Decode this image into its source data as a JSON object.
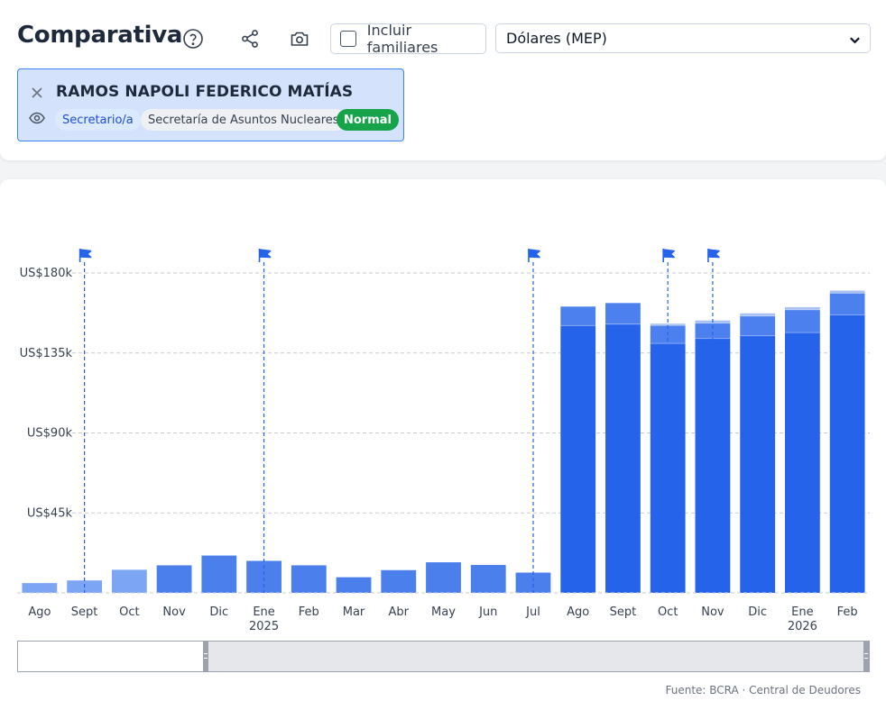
{
  "header": {
    "title": "Comparativa",
    "help_icon": "help-circle-icon",
    "share_icon": "share-icon",
    "camera_icon": "camera-icon",
    "include_family_label": "Incluir familiares",
    "include_family_checked": false,
    "currency_selected": "Dólares (MEP)"
  },
  "person": {
    "name": "RAMOS NAPOLI FEDERICO MATÍAS",
    "role": "Secretario/a",
    "organization": "Secretaría de Asuntos Nucleares",
    "status": "Normal",
    "status_color": "#16a34a",
    "card_color": "#d4e3fb"
  },
  "chart_data": {
    "type": "bar",
    "stacked": true,
    "ylim": [
      0,
      180000
    ],
    "yticks": [
      45000,
      90000,
      135000,
      180000
    ],
    "ytick_labels": [
      "US$45k",
      "US$90k",
      "US$135k",
      "US$180k"
    ],
    "month_labels": [
      "Ago",
      "Sept",
      "Oct",
      "Nov",
      "Dic",
      "Ene",
      "Feb",
      "Mar",
      "Abr",
      "May",
      "Jun",
      "Jul",
      "Ago",
      "Sept",
      "Oct",
      "Nov",
      "Dic",
      "Ene",
      "Feb"
    ],
    "year_labels": [
      {
        "index": 5,
        "label": "2025"
      },
      {
        "index": 17,
        "label": "2026"
      }
    ],
    "series": [
      {
        "name": "base",
        "values": [
          5500,
          7000,
          13000,
          15500,
          21000,
          18000,
          15500,
          8800,
          12800,
          17200,
          15700,
          11400,
          150400,
          151200,
          140400,
          143200,
          144700,
          146500,
          156400
        ],
        "colors": [
          "#7ca5f4",
          "#7ca5f4",
          "#7ca5f4",
          "#4a7fec",
          "#4a7fec",
          "#4a7fec",
          "#4a7fec",
          "#4a7fec",
          "#4a7fec",
          "#4a7fec",
          "#4a7fec",
          "#4a7fec",
          "#2563eb",
          "#2563eb",
          "#2563eb",
          "#2563eb",
          "#2563eb",
          "#2563eb",
          "#2563eb"
        ]
      },
      {
        "name": "extra",
        "values": [
          0,
          0,
          0,
          0,
          0,
          0,
          0,
          0,
          0,
          0,
          0,
          0,
          10700,
          11900,
          10100,
          8600,
          11100,
          12800,
          12200
        ],
        "color": "#4b80ee"
      },
      {
        "name": "minor",
        "values": [
          0,
          0,
          0,
          0,
          0,
          0,
          0,
          0,
          0,
          0,
          0,
          0,
          0,
          0,
          1000,
          1500,
          1500,
          1500,
          1500
        ],
        "color": "#a9c1f2"
      }
    ],
    "event_flags": [
      1,
      5,
      11,
      14,
      15
    ],
    "flag_color": "#2563eb",
    "grid": true,
    "source": "Fuente: BCRA · Central de Deudores"
  }
}
